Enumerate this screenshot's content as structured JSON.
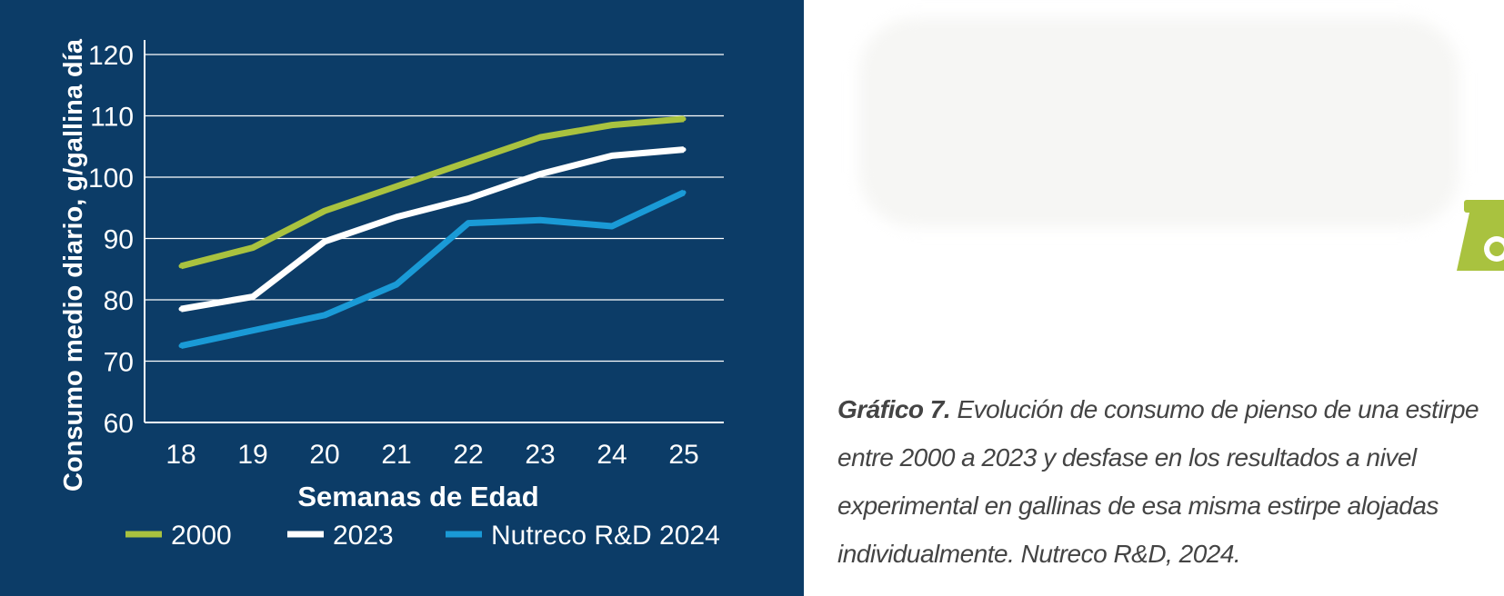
{
  "chart_data": {
    "type": "line",
    "xlabel": "Semanas de Edad",
    "ylabel": "Consumo medio diario, g/gallina día",
    "ylim": [
      60,
      120
    ],
    "yticks": [
      60,
      70,
      80,
      90,
      100,
      110,
      120
    ],
    "x": [
      18,
      19,
      20,
      21,
      22,
      23,
      24,
      25
    ],
    "grid": true,
    "legend_position": "bottom",
    "series": [
      {
        "name": "2000",
        "color": "#a9c23f",
        "values": [
          85.5,
          88.5,
          94.5,
          98.5,
          102.5,
          106.5,
          108.5,
          109.5
        ]
      },
      {
        "name": "2023",
        "color": "#ffffff",
        "values": [
          78.5,
          80.5,
          89.5,
          93.5,
          96.5,
          100.5,
          103.5,
          104.5
        ]
      },
      {
        "name": "Nutreco R&D 2024",
        "color": "#1a9ad6",
        "values": [
          72.5,
          75.0,
          77.5,
          82.5,
          92.5,
          93.0,
          92.0,
          97.5
        ]
      }
    ]
  },
  "caption": {
    "lead": "Gráfico 7.",
    "lines": [
      " Evolución de consumo de pienso de una estirpe",
      "entre 2000 a 2023 y desfase en los resultados a nivel",
      "experimental en gallinas de esa misma estirpe alojadas",
      "individualmente. Nutreco R&D, 2024."
    ]
  },
  "colors": {
    "panel_background": "#0c3c67",
    "caption_text": "#444444",
    "accent_green": "#a9c23f"
  }
}
